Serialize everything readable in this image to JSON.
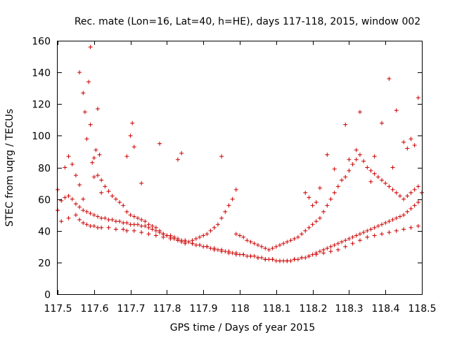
{
  "chart_data": {
    "type": "scatter",
    "title": "Rec. mate (Lon=16, Lat=40, h=HE), days 117-118, 2015, window 002",
    "xlabel": "GPS time / Days of year 2015",
    "ylabel": "STEC from uqrg / TECUs",
    "xlim": [
      117.5,
      118.5
    ],
    "ylim": [
      0,
      160
    ],
    "xticks": [
      "117.5",
      "117.6",
      "117.7",
      "117.8",
      "117.9",
      "118",
      "118.1",
      "118.2",
      "118.3",
      "118.4",
      "118.5"
    ],
    "yticks": [
      "0",
      "20",
      "40",
      "60",
      "80",
      "100",
      "120",
      "140",
      "160"
    ],
    "grid": false,
    "marker": "+",
    "color": "#cc0000",
    "series": [
      {
        "name": "STEC",
        "x": [
          117.5,
          117.5,
          117.52,
          117.53,
          117.54,
          117.55,
          117.56,
          117.57,
          117.58,
          117.59,
          117.6,
          117.61,
          117.62,
          117.63,
          117.64,
          117.65,
          117.66,
          117.67,
          117.68,
          117.69,
          117.7,
          117.71,
          117.72,
          117.73,
          117.74,
          117.75,
          117.76,
          117.77,
          117.78,
          117.79,
          117.8,
          117.81,
          117.82,
          117.83,
          117.84,
          117.85,
          117.86,
          117.87,
          117.88,
          117.89,
          117.9,
          117.91,
          117.92,
          117.93,
          117.94,
          117.95,
          117.96,
          117.97,
          117.98,
          117.99,
          118.0,
          118.01,
          118.02,
          118.03,
          118.04,
          118.05,
          118.06,
          118.07,
          118.08,
          118.09,
          118.1,
          118.11,
          118.12,
          118.13,
          118.14,
          118.15,
          118.16,
          118.17,
          118.18,
          118.19,
          118.2,
          118.21,
          118.22,
          118.23,
          118.24,
          118.25,
          118.26,
          118.27,
          118.28,
          118.29,
          118.3,
          118.31,
          118.32,
          118.33,
          118.34,
          118.35,
          118.36,
          118.37,
          118.38,
          118.39,
          118.4,
          118.41,
          118.42,
          118.43,
          118.44,
          118.45,
          118.46,
          118.47,
          118.48,
          118.49,
          118.5,
          117.51,
          117.52,
          117.53,
          117.54,
          117.55,
          117.56,
          117.57,
          117.58,
          117.59,
          117.6,
          117.61,
          117.62,
          117.63,
          117.64,
          117.65,
          117.66,
          117.67,
          117.68,
          117.69,
          117.7,
          117.71,
          117.72,
          117.73,
          117.74,
          117.75,
          117.76,
          117.77,
          117.78,
          117.79,
          117.8,
          117.81,
          117.82,
          117.83,
          117.84,
          117.85,
          117.86,
          117.87,
          117.88,
          117.89,
          117.9,
          117.91,
          117.92,
          117.93,
          117.94,
          117.95,
          117.96,
          117.97,
          117.98,
          117.99,
          118.0,
          118.01,
          118.02,
          118.03,
          118.04,
          118.05,
          118.06,
          118.07,
          118.08,
          118.09,
          118.1,
          118.11,
          118.12,
          118.13,
          118.14,
          118.15,
          118.16,
          118.17,
          118.18,
          118.19,
          118.2,
          118.21,
          118.22,
          118.23,
          118.24,
          118.25,
          118.26,
          118.27,
          118.28,
          118.29,
          118.3,
          118.31,
          118.32,
          118.33,
          118.34,
          118.35,
          118.36,
          118.37,
          118.38,
          118.39,
          118.4,
          118.41,
          118.42,
          118.43,
          118.44,
          118.45,
          118.46,
          118.47,
          118.48,
          118.49,
          117.51,
          117.53,
          117.55,
          117.56,
          117.57,
          117.58,
          117.59,
          117.6,
          117.61,
          117.62,
          117.64,
          117.66,
          117.68,
          117.69,
          117.71,
          117.73,
          117.75,
          117.77,
          117.79,
          117.81,
          117.83,
          117.85,
          117.87,
          117.89,
          117.91,
          117.93,
          117.95,
          117.97,
          117.99,
          118.01,
          118.03,
          118.05,
          118.07,
          118.09,
          118.11,
          118.13,
          118.15,
          118.17,
          118.19,
          118.21,
          118.23,
          118.25,
          118.27,
          118.29,
          118.31,
          118.33,
          118.35,
          118.37,
          118.39,
          118.41,
          118.43,
          118.45,
          118.47,
          118.49,
          117.56,
          117.57,
          117.575,
          117.585,
          117.59,
          117.595,
          117.6,
          117.605,
          117.61,
          117.615,
          117.62,
          117.69,
          117.7,
          117.705,
          117.71,
          117.73,
          117.78,
          117.83,
          117.84,
          117.95,
          117.99,
          118.29,
          118.3,
          118.32,
          118.33,
          118.39,
          118.41,
          118.42,
          118.43,
          118.45,
          118.46,
          118.47,
          118.48,
          118.49,
          118.36,
          118.37,
          118.18,
          118.19,
          118.2,
          118.21,
          118.22,
          118.24,
          118.26
        ],
        "y": [
          66,
          53,
          80,
          87,
          82,
          75,
          69,
          60,
          98,
          107,
          86,
          75,
          72,
          68,
          65,
          62,
          60,
          58,
          56,
          52,
          50,
          49,
          48,
          47,
          46,
          44,
          43,
          42,
          40,
          38,
          37,
          36,
          35,
          34,
          33,
          32,
          33,
          34,
          35,
          36,
          37,
          38,
          40,
          42,
          44,
          48,
          52,
          56,
          60,
          38,
          37,
          36,
          34,
          33,
          32,
          31,
          30,
          29,
          28,
          29,
          30,
          31,
          32,
          33,
          34,
          35,
          36,
          38,
          40,
          42,
          44,
          46,
          48,
          52,
          56,
          60,
          64,
          68,
          72,
          74,
          78,
          82,
          85,
          88,
          84,
          80,
          78,
          76,
          74,
          72,
          70,
          68,
          66,
          64,
          62,
          60,
          62,
          64,
          66,
          68,
          64,
          59,
          61,
          62,
          60,
          57,
          55,
          53,
          52,
          51,
          50,
          49,
          48,
          48,
          47,
          47,
          46,
          46,
          45,
          45,
          44,
          44,
          44,
          43,
          43,
          42,
          41,
          40,
          39,
          38,
          37,
          37,
          36,
          35,
          34,
          34,
          33,
          32,
          31,
          31,
          30,
          30,
          29,
          28,
          28,
          27,
          27,
          26,
          26,
          25,
          25,
          25,
          24,
          24,
          24,
          23,
          23,
          22,
          22,
          22,
          21,
          21,
          21,
          21,
          21,
          22,
          22,
          23,
          23,
          24,
          25,
          26,
          27,
          28,
          29,
          30,
          31,
          32,
          33,
          34,
          35,
          36,
          37,
          38,
          39,
          40,
          41,
          42,
          43,
          44,
          45,
          46,
          47,
          48,
          49,
          50,
          52,
          54,
          56,
          58,
          46,
          48,
          50,
          47,
          45,
          44,
          43,
          43,
          42,
          42,
          42,
          41,
          41,
          40,
          40,
          39,
          38,
          37,
          36,
          35,
          34,
          33,
          32,
          31,
          30,
          29,
          28,
          27,
          26,
          25,
          24,
          23,
          22,
          22,
          21,
          21,
          22,
          23,
          24,
          25,
          26,
          27,
          28,
          30,
          32,
          34,
          36,
          37,
          38,
          39,
          40,
          41,
          42,
          43,
          140,
          127,
          115,
          134,
          156,
          83,
          74,
          91,
          117,
          88,
          64,
          87,
          100,
          108,
          93,
          70,
          95,
          85,
          89,
          87,
          66,
          107,
          85,
          91,
          115,
          108,
          136,
          80,
          116,
          96,
          92,
          98,
          94,
          124,
          71,
          87,
          64,
          61,
          56,
          58,
          67,
          88,
          79
        ]
      }
    ]
  }
}
